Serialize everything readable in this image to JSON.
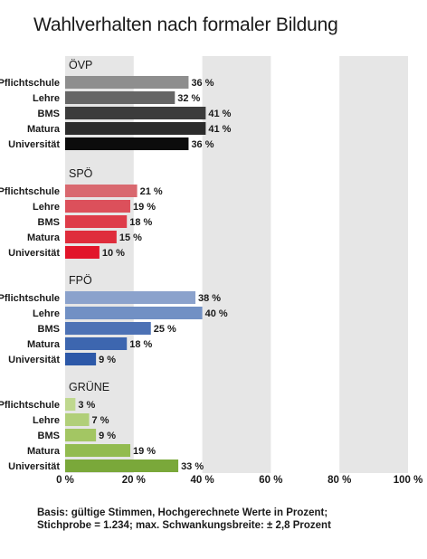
{
  "title": "Wahlverhalten nach formaler Bildung",
  "footnote": {
    "line1": "Basis: gültige Stimmen, Hochgerechnete Werte in Prozent;",
    "line2": "Stichprobe = 1.234; max. Schwankungsbreite: ± 2,8 Prozent"
  },
  "chart_data": {
    "type": "bar",
    "orientation": "horizontal",
    "title": "Wahlverhalten nach formaler Bildung",
    "xlim": [
      0,
      100
    ],
    "x_ticks": [
      0,
      20,
      40,
      60,
      80,
      100
    ],
    "x_tick_labels": [
      "0 %",
      "20 %",
      "40 %",
      "60 %",
      "80 %",
      "100 %"
    ],
    "categories": [
      "Pflichtschule",
      "Lehre",
      "BMS",
      "Matura",
      "Universität"
    ],
    "value_suffix": " %",
    "background": "alternating grey/white vertical bands every 20 %",
    "groups": [
      {
        "name": "ÖVP",
        "values": [
          36,
          32,
          41,
          41,
          36
        ],
        "colors": [
          "#8e8e8e",
          "#666666",
          "#3c3c3c",
          "#2c2c2c",
          "#0c0c0c"
        ]
      },
      {
        "name": "SPÖ",
        "values": [
          21,
          19,
          18,
          15,
          10
        ],
        "colors": [
          "#d9686f",
          "#dc505b",
          "#de3c49",
          "#df2d3c",
          "#e2152a"
        ]
      },
      {
        "name": "FPÖ",
        "values": [
          38,
          40,
          25,
          18,
          9
        ],
        "colors": [
          "#8ba2cc",
          "#7190c4",
          "#4d72b5",
          "#3d66af",
          "#2c58a8"
        ]
      },
      {
        "name": "GRÜNE",
        "values": [
          3,
          7,
          9,
          19,
          33
        ],
        "colors": [
          "#bfd88f",
          "#b1cf79",
          "#a3c663",
          "#92bb4f",
          "#7aa83a"
        ]
      }
    ]
  }
}
